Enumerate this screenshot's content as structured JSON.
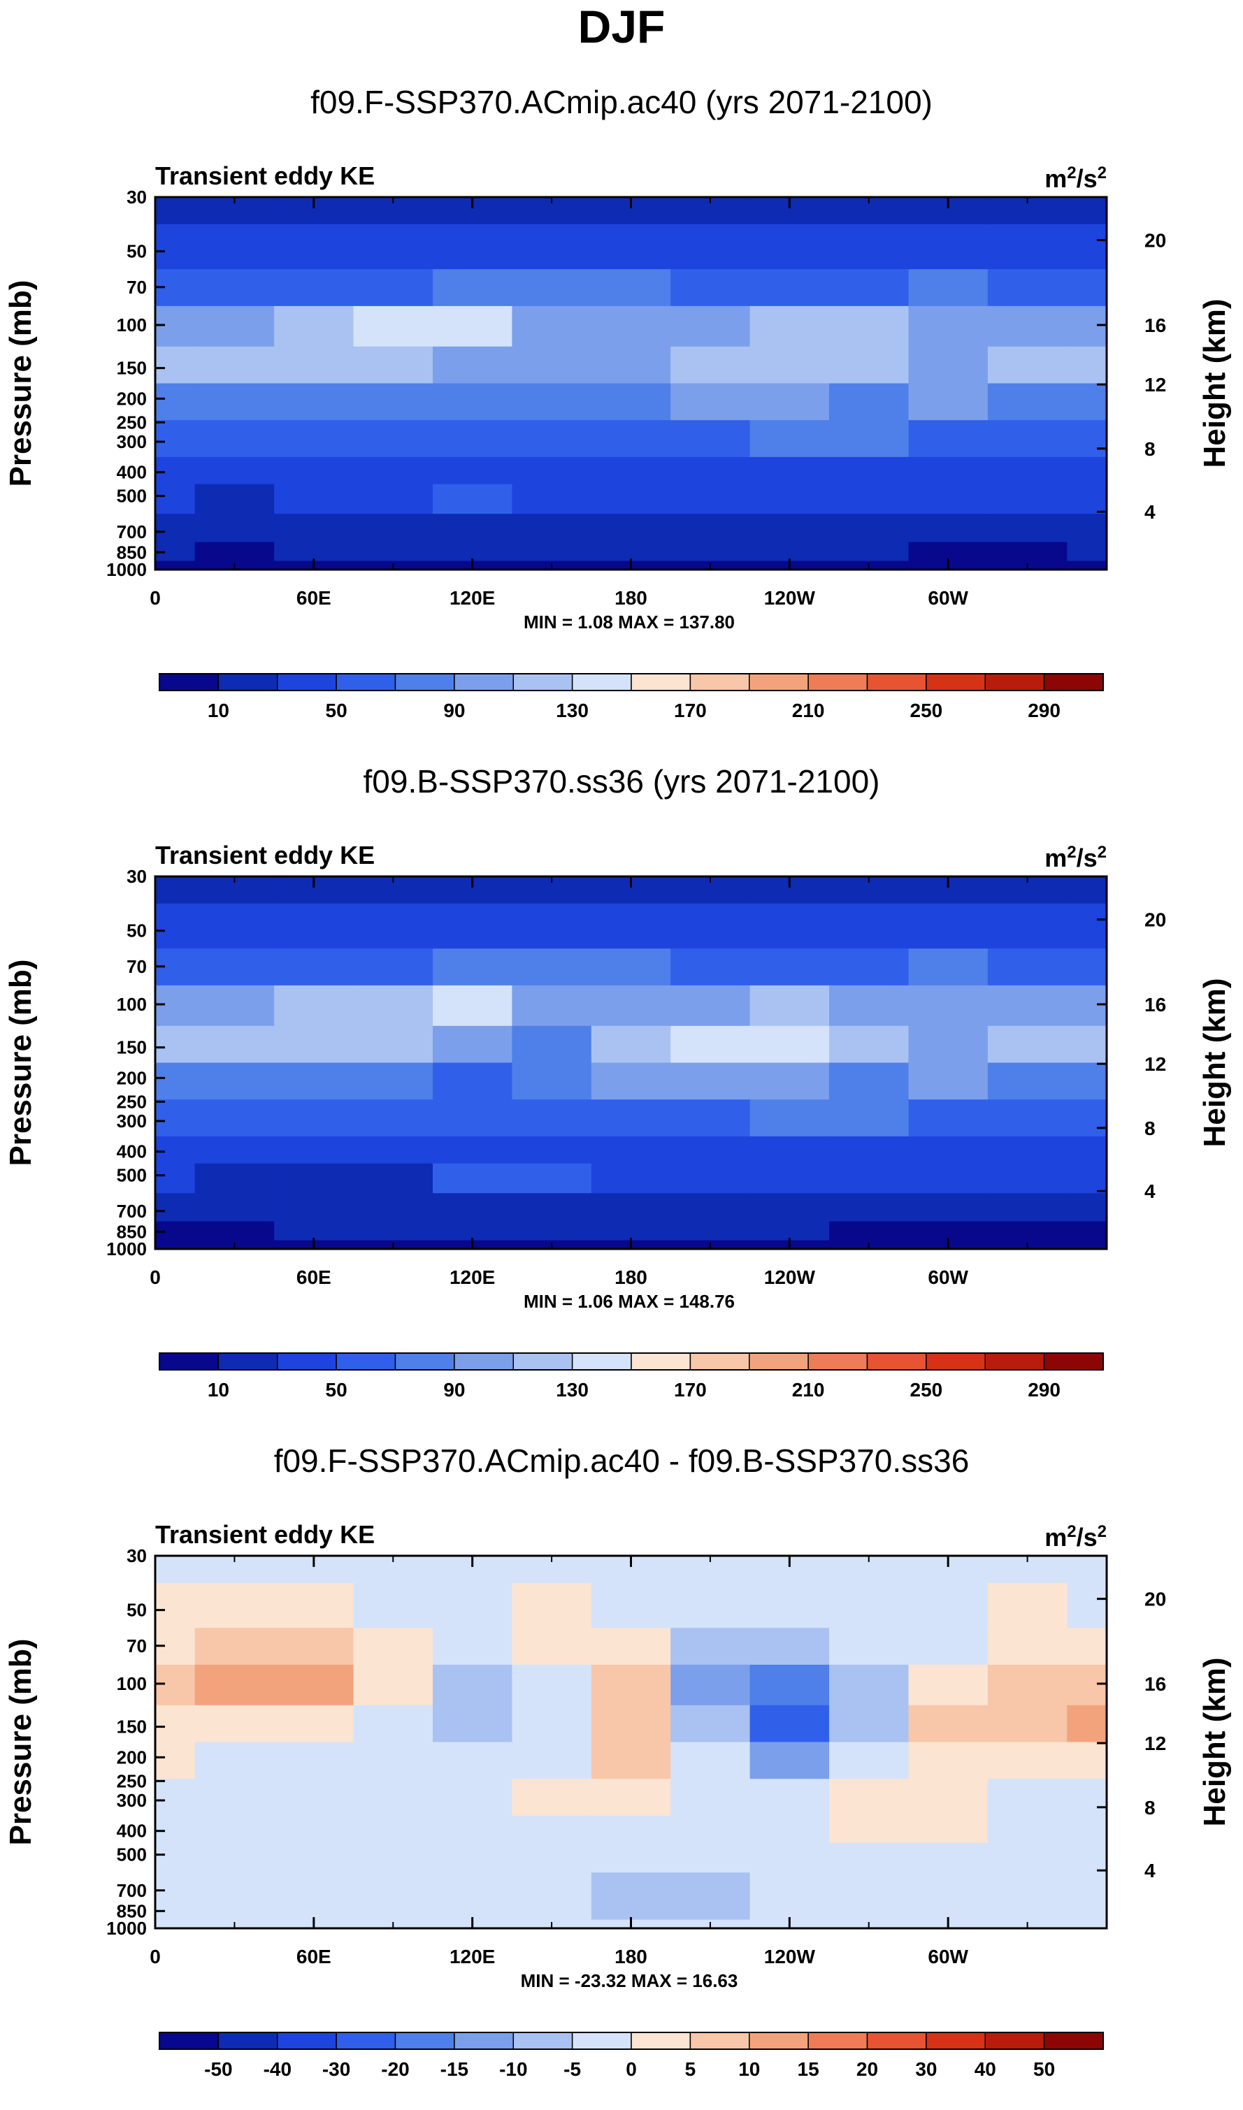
{
  "figure_title": "DJF",
  "chart_data": [
    {
      "type": "heatmap",
      "title": "f09.F-SSP370.ACmip.ac40 (yrs 2071-2100)",
      "left_label": "Transient eddy KE",
      "units_base": "m",
      "units_exp1": "2",
      "units_mid": "/s",
      "units_exp2": "2",
      "ylabel": "Pressure (mb)",
      "y2label": "Height (km)",
      "x_ticks": [
        "0",
        "60E",
        "120E",
        "180",
        "120W",
        "60W"
      ],
      "x_tick_lon": [
        0,
        60,
        120,
        180,
        240,
        300
      ],
      "xlim": [
        0,
        360
      ],
      "y_ticks": [
        "30",
        "50",
        "70",
        "100",
        "150",
        "200",
        "250",
        "300",
        "400",
        "500",
        "700",
        "850",
        "1000"
      ],
      "y_tick_values": [
        30,
        50,
        70,
        100,
        150,
        200,
        250,
        300,
        400,
        500,
        700,
        850,
        1000
      ],
      "ylim": [
        1000,
        30
      ],
      "y2_ticks": [
        "20",
        "16",
        "12",
        "8",
        "4"
      ],
      "y2_tick_pressure": [
        45,
        100,
        175,
        320,
        580
      ],
      "stats": "MIN =   1.08  MAX = 137.80",
      "colorbar_labels": [
        "10",
        "50",
        "90",
        "130",
        "170",
        "210",
        "250",
        "290"
      ],
      "colorbar_colors": [
        "#08088c",
        "#0e2bb4",
        "#1e44de",
        "#3060ea",
        "#4f7fe8",
        "#7c9fec",
        "#a9c2f2",
        "#d4e3fa",
        "#fbe4d2",
        "#f8c6a8",
        "#f3a37c",
        "#ee7c56",
        "#e65432",
        "#d63216",
        "#b81c0c",
        "#8c0606"
      ],
      "grid_lon": [
        0,
        30,
        60,
        90,
        120,
        150,
        180,
        210,
        240,
        270,
        300,
        330,
        360
      ],
      "grid_p": [
        30,
        50,
        70,
        100,
        150,
        200,
        300,
        400,
        500,
        700,
        850,
        1000
      ],
      "grid": [
        [
          1,
          1,
          1,
          1,
          1,
          1,
          1,
          1,
          1,
          1,
          1,
          1,
          1
        ],
        [
          2,
          2,
          2,
          2,
          2,
          2,
          2,
          2,
          2,
          2,
          2,
          2,
          2
        ],
        [
          3,
          3,
          3,
          3,
          4,
          4,
          4,
          3,
          3,
          3,
          4,
          3,
          3
        ],
        [
          5,
          5,
          6,
          7,
          7,
          5,
          5,
          5,
          6,
          6,
          5,
          5,
          5
        ],
        [
          6,
          6,
          6,
          6,
          5,
          5,
          5,
          6,
          6,
          6,
          5,
          6,
          6
        ],
        [
          4,
          4,
          4,
          4,
          4,
          4,
          4,
          5,
          5,
          4,
          5,
          4,
          4
        ],
        [
          3,
          3,
          3,
          3,
          3,
          3,
          3,
          3,
          4,
          4,
          3,
          3,
          3
        ],
        [
          2,
          2,
          2,
          2,
          2,
          2,
          2,
          2,
          2,
          2,
          2,
          2,
          2
        ],
        [
          2,
          1,
          2,
          2,
          3,
          2,
          2,
          2,
          2,
          2,
          2,
          2,
          2
        ],
        [
          1,
          1,
          1,
          1,
          1,
          1,
          1,
          1,
          1,
          1,
          1,
          1,
          1
        ],
        [
          1,
          0,
          1,
          1,
          1,
          1,
          1,
          1,
          1,
          1,
          0,
          0,
          1
        ],
        [
          0,
          0,
          0,
          0,
          0,
          0,
          0,
          0,
          0,
          0,
          0,
          0,
          0
        ]
      ]
    },
    {
      "type": "heatmap",
      "title": "f09.B-SSP370.ss36 (yrs 2071-2100)",
      "left_label": "Transient eddy KE",
      "units_base": "m",
      "units_exp1": "2",
      "units_mid": "/s",
      "units_exp2": "2",
      "ylabel": "Pressure (mb)",
      "y2label": "Height (km)",
      "x_ticks": [
        "0",
        "60E",
        "120E",
        "180",
        "120W",
        "60W"
      ],
      "x_tick_lon": [
        0,
        60,
        120,
        180,
        240,
        300
      ],
      "xlim": [
        0,
        360
      ],
      "y_ticks": [
        "30",
        "50",
        "70",
        "100",
        "150",
        "200",
        "250",
        "300",
        "400",
        "500",
        "700",
        "850",
        "1000"
      ],
      "y_tick_values": [
        30,
        50,
        70,
        100,
        150,
        200,
        250,
        300,
        400,
        500,
        700,
        850,
        1000
      ],
      "ylim": [
        1000,
        30
      ],
      "y2_ticks": [
        "20",
        "16",
        "12",
        "8",
        "4"
      ],
      "y2_tick_pressure": [
        45,
        100,
        175,
        320,
        580
      ],
      "stats": "MIN =   1.06  MAX = 148.76",
      "colorbar_labels": [
        "10",
        "50",
        "90",
        "130",
        "170",
        "210",
        "250",
        "290"
      ],
      "colorbar_colors": [
        "#08088c",
        "#0e2bb4",
        "#1e44de",
        "#3060ea",
        "#4f7fe8",
        "#7c9fec",
        "#a9c2f2",
        "#d4e3fa",
        "#fbe4d2",
        "#f8c6a8",
        "#f3a37c",
        "#ee7c56",
        "#e65432",
        "#d63216",
        "#b81c0c",
        "#8c0606"
      ],
      "grid_lon": [
        0,
        30,
        60,
        90,
        120,
        150,
        180,
        210,
        240,
        270,
        300,
        330,
        360
      ],
      "grid_p": [
        30,
        50,
        70,
        100,
        150,
        200,
        300,
        400,
        500,
        700,
        850,
        1000
      ],
      "grid": [
        [
          1,
          1,
          1,
          1,
          1,
          1,
          1,
          1,
          1,
          1,
          1,
          1,
          1
        ],
        [
          2,
          2,
          2,
          2,
          2,
          2,
          2,
          2,
          2,
          2,
          2,
          2,
          2
        ],
        [
          3,
          3,
          3,
          3,
          4,
          4,
          4,
          3,
          3,
          3,
          4,
          3,
          3
        ],
        [
          5,
          5,
          6,
          6,
          7,
          5,
          5,
          5,
          6,
          5,
          5,
          5,
          5
        ],
        [
          6,
          6,
          6,
          6,
          5,
          4,
          6,
          7,
          7,
          6,
          5,
          6,
          6
        ],
        [
          4,
          4,
          4,
          4,
          3,
          4,
          5,
          5,
          5,
          4,
          5,
          4,
          4
        ],
        [
          3,
          3,
          3,
          3,
          3,
          3,
          3,
          3,
          4,
          4,
          3,
          3,
          3
        ],
        [
          2,
          2,
          2,
          2,
          2,
          2,
          2,
          2,
          2,
          2,
          2,
          2,
          2
        ],
        [
          2,
          1,
          1,
          1,
          3,
          3,
          2,
          2,
          2,
          2,
          2,
          2,
          2
        ],
        [
          1,
          1,
          1,
          1,
          1,
          1,
          1,
          1,
          1,
          1,
          1,
          1,
          1
        ],
        [
          0,
          0,
          1,
          1,
          1,
          1,
          1,
          1,
          1,
          0,
          0,
          0,
          0
        ],
        [
          0,
          0,
          0,
          0,
          0,
          0,
          0,
          0,
          0,
          0,
          0,
          0,
          0
        ]
      ]
    },
    {
      "type": "heatmap",
      "title": "f09.F-SSP370.ACmip.ac40 - f09.B-SSP370.ss36",
      "left_label": "Transient eddy KE",
      "units_base": "m",
      "units_exp1": "2",
      "units_mid": "/s",
      "units_exp2": "2",
      "ylabel": "Pressure (mb)",
      "y2label": "Height (km)",
      "x_ticks": [
        "0",
        "60E",
        "120E",
        "180",
        "120W",
        "60W"
      ],
      "x_tick_lon": [
        0,
        60,
        120,
        180,
        240,
        300
      ],
      "xlim": [
        0,
        360
      ],
      "y_ticks": [
        "30",
        "50",
        "70",
        "100",
        "150",
        "200",
        "250",
        "300",
        "400",
        "500",
        "700",
        "850",
        "1000"
      ],
      "y_tick_values": [
        30,
        50,
        70,
        100,
        150,
        200,
        250,
        300,
        400,
        500,
        700,
        850,
        1000
      ],
      "ylim": [
        1000,
        30
      ],
      "y2_ticks": [
        "20",
        "16",
        "12",
        "8",
        "4"
      ],
      "y2_tick_pressure": [
        45,
        100,
        175,
        320,
        580
      ],
      "stats": "MIN = -23.32  MAX = 16.63",
      "colorbar_labels": [
        "-50",
        "-40",
        "-30",
        "-20",
        "-15",
        "-10",
        "-5",
        "0",
        "5",
        "10",
        "15",
        "20",
        "30",
        "40",
        "50"
      ],
      "colorbar_colors": [
        "#08088c",
        "#0e2bb4",
        "#1e44de",
        "#3060ea",
        "#4f7fe8",
        "#7c9fec",
        "#a9c2f2",
        "#d4e3fa",
        "#fbe4d2",
        "#f8c6a8",
        "#f3a37c",
        "#ee7c56",
        "#e65432",
        "#d63216",
        "#b81c0c",
        "#8c0606"
      ],
      "grid_lon": [
        0,
        30,
        60,
        90,
        120,
        150,
        180,
        210,
        240,
        270,
        300,
        330,
        360
      ],
      "grid_p": [
        30,
        50,
        70,
        100,
        150,
        200,
        300,
        400,
        500,
        700,
        850,
        1000
      ],
      "grid": [
        [
          7,
          7,
          7,
          7,
          7,
          7,
          7,
          7,
          7,
          7,
          7,
          7,
          7
        ],
        [
          8,
          8,
          8,
          7,
          7,
          8,
          7,
          7,
          7,
          7,
          7,
          8,
          7
        ],
        [
          8,
          9,
          9,
          8,
          7,
          8,
          8,
          6,
          6,
          7,
          7,
          8,
          8
        ],
        [
          9,
          10,
          10,
          8,
          6,
          7,
          9,
          5,
          4,
          6,
          8,
          9,
          9
        ],
        [
          8,
          8,
          8,
          7,
          6,
          7,
          9,
          6,
          3,
          6,
          9,
          9,
          10
        ],
        [
          8,
          7,
          7,
          7,
          7,
          7,
          9,
          7,
          5,
          7,
          8,
          8,
          8
        ],
        [
          7,
          7,
          7,
          7,
          7,
          8,
          8,
          7,
          7,
          8,
          8,
          7,
          7
        ],
        [
          7,
          7,
          7,
          7,
          7,
          7,
          7,
          7,
          7,
          8,
          8,
          7,
          7
        ],
        [
          7,
          7,
          7,
          7,
          7,
          7,
          7,
          7,
          7,
          7,
          7,
          7,
          7
        ],
        [
          7,
          7,
          7,
          7,
          7,
          7,
          6,
          6,
          7,
          7,
          7,
          7,
          7
        ],
        [
          7,
          7,
          7,
          7,
          7,
          7,
          6,
          6,
          7,
          7,
          7,
          7,
          7
        ],
        [
          7,
          7,
          7,
          7,
          7,
          7,
          7,
          7,
          7,
          7,
          7,
          7,
          7
        ]
      ]
    }
  ]
}
